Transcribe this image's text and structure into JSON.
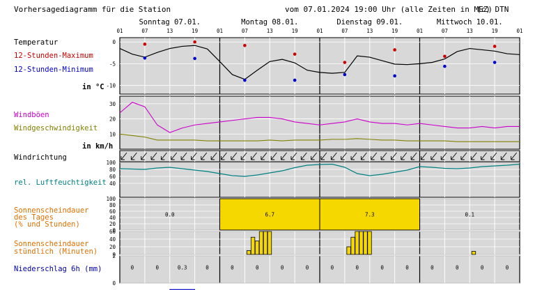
{
  "header": {
    "title": "Vorhersagediagramm für die Station",
    "issued": "vom 07.01.2024 19:00 Uhr (alle Zeiten in MEZ)",
    "copyright": "(c) DTN"
  },
  "days": [
    "Sonntag 07.01.",
    "Montag 08.01.",
    "Dienstag 09.01.",
    "Mittwoch 10.01."
  ],
  "hour_ticks": [
    "01",
    "07",
    "13",
    "19"
  ],
  "labels": {
    "temperature": "Temperatur",
    "max": "12-Stunden-Maximum",
    "min": "12-Stunden-Minimum",
    "temp_unit": "in °C",
    "gusts": "Windböen",
    "wind_speed": "Windgeschwindigkeit",
    "wind_unit": "in km/h",
    "wind_dir": "Windrichtung",
    "humidity": "rel. Luftfeuchtigkeit",
    "sun_daily": [
      "Sonnenscheindauer",
      "des Tages",
      "(% und Stunden)"
    ],
    "sun_hourly": [
      "Sonnenscheindauer",
      "stündlich (Minuten)"
    ],
    "precip": "Niederschlag 6h (mm)"
  },
  "colors": {
    "max": "#cc0000",
    "min": "#0000cc",
    "gusts": "#cc00cc",
    "wind": "#808000",
    "humidity": "#008080",
    "sun_text": "#e07000",
    "sun_fill": "#f5d800",
    "precip": "#0000aa",
    "temp_line": "#000000"
  },
  "chart_data": [
    {
      "type": "line",
      "name": "temperature",
      "ylim": [
        -12,
        1
      ],
      "yticks": [
        0,
        -5,
        -10
      ],
      "x_hours": [
        0,
        3,
        6,
        9,
        12,
        15,
        18,
        21,
        24,
        27,
        30,
        33,
        36,
        39,
        42,
        45,
        48,
        51,
        54,
        57,
        60,
        63,
        66,
        69,
        72,
        75,
        78,
        81,
        84,
        87,
        90,
        93,
        96
      ],
      "temperature": [
        -1.5,
        -2.8,
        -3.5,
        -2.4,
        -1.5,
        -1.0,
        -0.8,
        -1.6,
        -4.5,
        -7.5,
        -8.6,
        -6.5,
        -4.5,
        -4.0,
        -4.8,
        -6.5,
        -7.0,
        -7.2,
        -7.0,
        -3.2,
        -3.5,
        -4.3,
        -5.1,
        -5.2,
        -5.0,
        -4.7,
        -3.9,
        -2.2,
        -1.5,
        -1.8,
        -2.1,
        -2.7,
        -2.9
      ],
      "max_points": [
        {
          "x": 6,
          "y": -0.5
        },
        {
          "x": 18,
          "y": 0
        },
        {
          "x": 30,
          "y": -0.8
        },
        {
          "x": 42,
          "y": -2.8
        },
        {
          "x": 54,
          "y": -4.7
        },
        {
          "x": 66,
          "y": -1.8
        },
        {
          "x": 78,
          "y": -3.3
        },
        {
          "x": 90,
          "y": -1.0
        }
      ],
      "min_points": [
        {
          "x": 6,
          "y": -3.7
        },
        {
          "x": 18,
          "y": -3.8
        },
        {
          "x": 30,
          "y": -8.8
        },
        {
          "x": 42,
          "y": -8.8
        },
        {
          "x": 54,
          "y": -7.5
        },
        {
          "x": 66,
          "y": -7.8
        },
        {
          "x": 78,
          "y": -5.6
        },
        {
          "x": 90,
          "y": -4.7
        }
      ]
    },
    {
      "type": "line",
      "name": "wind",
      "ylim": [
        0,
        35
      ],
      "yticks": [
        30,
        20,
        10
      ],
      "x_hours": [
        0,
        3,
        6,
        9,
        12,
        15,
        18,
        21,
        24,
        27,
        30,
        33,
        36,
        39,
        42,
        45,
        48,
        51,
        54,
        57,
        60,
        63,
        66,
        69,
        72,
        75,
        78,
        81,
        84,
        87,
        90,
        93,
        96
      ],
      "gusts": [
        24,
        31,
        28,
        16,
        11,
        14,
        16,
        17,
        18,
        19,
        20,
        21,
        21,
        20,
        18,
        17,
        16,
        17,
        18,
        20,
        18,
        17,
        17,
        16,
        17,
        16,
        15,
        14,
        14,
        15,
        14,
        15,
        15
      ],
      "wind_speed": [
        10,
        9,
        8,
        6,
        6,
        6,
        6,
        5.5,
        5.5,
        5.5,
        5.5,
        5.5,
        6,
        5.5,
        6,
        6,
        6,
        6.5,
        6.5,
        7,
        6.5,
        6,
        6,
        5.5,
        5.5,
        5.5,
        5.5,
        5,
        5,
        5,
        5,
        5,
        5
      ]
    },
    {
      "type": "line",
      "name": "humidity",
      "ylim": [
        0,
        100
      ],
      "yticks": [
        100,
        80,
        60,
        40
      ],
      "x_hours": [
        0,
        3,
        6,
        9,
        12,
        15,
        18,
        21,
        24,
        27,
        30,
        33,
        36,
        39,
        42,
        45,
        48,
        51,
        54,
        57,
        60,
        63,
        66,
        69,
        72,
        75,
        78,
        81,
        84,
        87,
        90,
        93,
        96
      ],
      "humidity": [
        82,
        81,
        80,
        84,
        86,
        82,
        78,
        74,
        68,
        62,
        60,
        64,
        70,
        76,
        85,
        92,
        94,
        95,
        86,
        68,
        62,
        66,
        72,
        78,
        88,
        86,
        83,
        82,
        84,
        88,
        90,
        92,
        95
      ]
    },
    {
      "type": "bar",
      "name": "sun_daily",
      "ylim": [
        0,
        100
      ],
      "yticks": [
        100,
        80,
        60,
        40,
        20,
        0
      ],
      "categories": [
        "Sonntag 07.01.",
        "Montag 08.01.",
        "Dienstag 09.01.",
        "Mittwoch 10.01."
      ],
      "percent": [
        0,
        100,
        100,
        0
      ],
      "hours_labels": [
        "0.0",
        "6.7",
        "7.3",
        "0.1"
      ]
    },
    {
      "type": "bar",
      "name": "sun_hourly",
      "ylim": [
        0,
        60
      ],
      "yticks": [
        60,
        40,
        20,
        0
      ],
      "hours": [
        31,
        32,
        33,
        34,
        35,
        36,
        55,
        56,
        57,
        58,
        59,
        60,
        85
      ],
      "minutes": [
        10,
        45,
        35,
        60,
        60,
        60,
        20,
        45,
        60,
        60,
        60,
        60,
        8
      ]
    },
    {
      "type": "bar",
      "name": "precipitation",
      "ylim": [
        0,
        2
      ],
      "yticks": [
        2,
        0
      ],
      "x_hours": [
        3,
        9,
        15,
        21,
        27,
        33,
        39,
        45,
        51,
        57,
        63,
        69,
        75,
        81,
        87,
        93
      ],
      "labels": [
        "0",
        "0",
        "0.3",
        "0",
        "0",
        "0",
        "0",
        "0",
        "0",
        "0",
        "0",
        "0",
        "0",
        "0",
        "0",
        "0"
      ],
      "values": [
        0,
        0,
        0.3,
        0,
        0,
        0,
        0,
        0,
        0,
        0,
        0,
        0,
        0,
        0,
        0,
        0
      ]
    }
  ]
}
